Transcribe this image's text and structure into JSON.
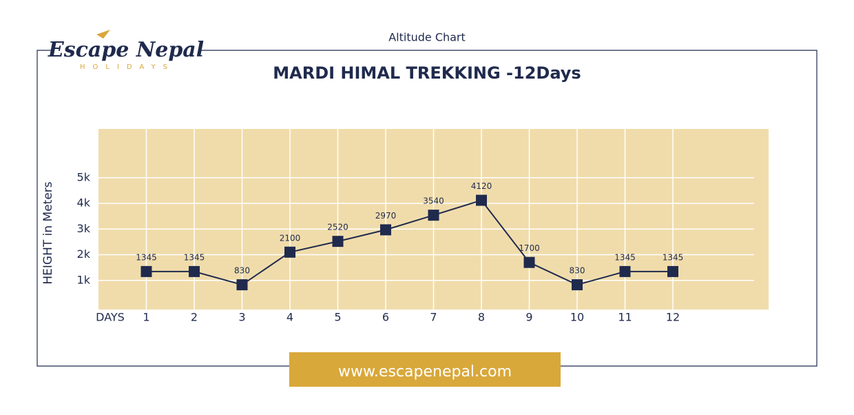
{
  "header": {
    "caption": "Altitude Chart",
    "logo": "Escape Nepal",
    "logo_sub": "HOLIDAYS"
  },
  "chart_data": {
    "type": "line",
    "title": "MARDI HIMAL TREKKING -12Days",
    "y_label": "HEIGHT in Meters",
    "x_label": "DAYS",
    "x": [
      1,
      2,
      3,
      4,
      5,
      6,
      7,
      8,
      9,
      10,
      11,
      12
    ],
    "values": [
      1345,
      1345,
      830,
      2100,
      2520,
      2970,
      3540,
      4120,
      1700,
      830,
      1345,
      1345
    ],
    "color": "#1f2a4d",
    "xlim": [
      0,
      14
    ],
    "xticks": [
      1,
      2,
      3,
      4,
      5,
      6,
      7,
      8,
      9,
      10,
      11,
      12
    ],
    "ylim": [
      0,
      6900
    ],
    "yticks": [
      {
        "value": 1000,
        "label": "1k"
      },
      {
        "value": 2000,
        "label": "2k"
      },
      {
        "value": 3000,
        "label": "3k"
      },
      {
        "value": 4000,
        "label": "4k"
      },
      {
        "value": 5000,
        "label": "5k"
      }
    ],
    "grid": true
  },
  "footer": {
    "url": "www.escapenepal.com"
  }
}
